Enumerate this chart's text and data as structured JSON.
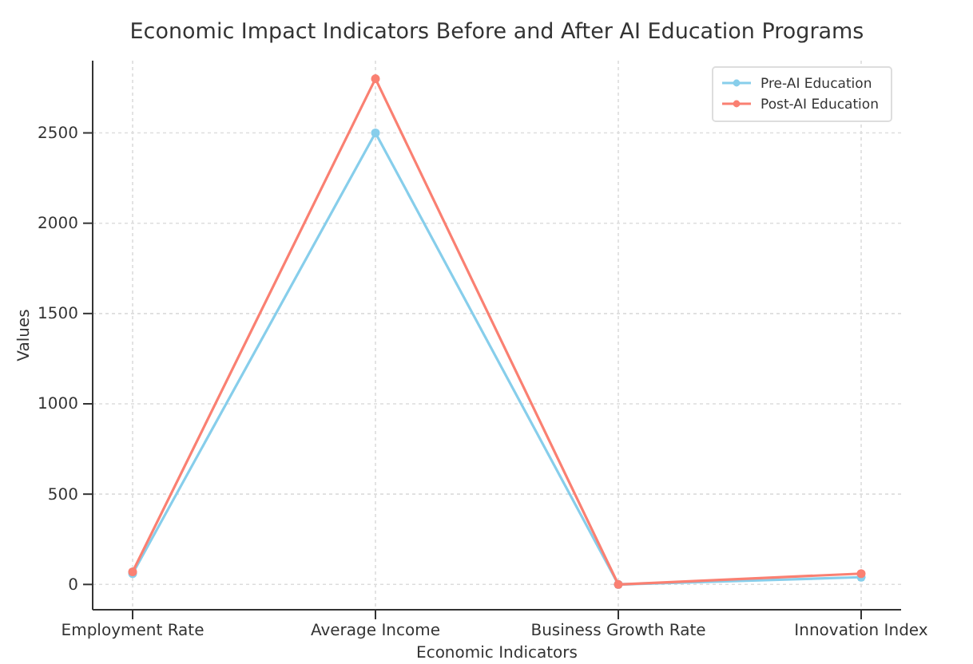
{
  "chart_data": {
    "type": "line",
    "title": "Economic Impact Indicators Before and After AI Education Programs",
    "xlabel": "Economic Indicators",
    "ylabel": "Values",
    "categories": [
      "Employment Rate",
      "Average Income",
      "Business Growth Rate",
      "Innovation Index"
    ],
    "series": [
      {
        "name": "Pre-AI Education",
        "color": "#87ceeb",
        "values": [
          60,
          2500,
          0,
          40
        ]
      },
      {
        "name": "Post-AI Education",
        "color": "#fa8072",
        "values": [
          70,
          2800,
          0,
          60
        ]
      }
    ],
    "ylim": [
      -140,
      2900
    ],
    "yticks": [
      0,
      500,
      1000,
      1500,
      2000,
      2500
    ],
    "grid": true,
    "legend": "top right",
    "marker": "circle",
    "line_style": "solid"
  }
}
